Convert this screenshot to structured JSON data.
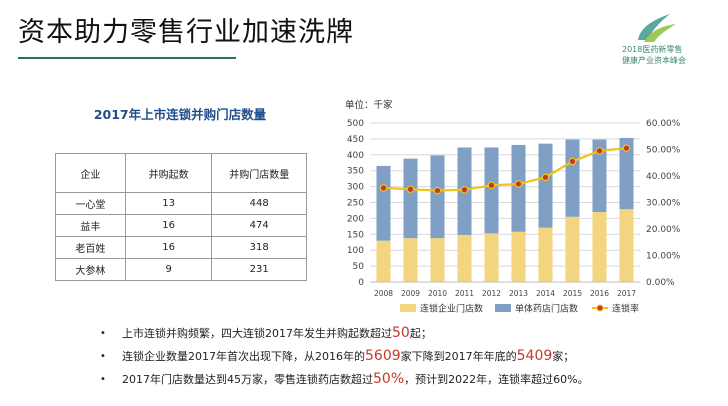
{
  "header": {
    "title": "资本助力零售行业加速洗牌",
    "logo_line1": "2018医药新零售",
    "logo_line2": "健康产业资本峰会"
  },
  "table": {
    "title": "2017年上市连锁并购门店数量",
    "headers": [
      "企业",
      "并购起数",
      "并购门店数量"
    ],
    "rows": [
      [
        "一心堂",
        "13",
        "448"
      ],
      [
        "益丰",
        "16",
        "474"
      ],
      [
        "老百姓",
        "16",
        "318"
      ],
      [
        "大参林",
        "9",
        "231"
      ]
    ]
  },
  "chart": {
    "unit_label": "单位：千家"
  },
  "chart_data": {
    "type": "bar",
    "categories": [
      "2008",
      "2009",
      "2010",
      "2011",
      "2012",
      "2013",
      "2014",
      "2015",
      "2016",
      "2017"
    ],
    "series": [
      {
        "name": "连锁企业门店数",
        "kind": "stacked-bar",
        "color": "#f2d57e",
        "values": [
          130,
          138,
          138,
          148,
          153,
          158,
          171,
          205,
          220,
          229
        ]
      },
      {
        "name": "单体药店门店数",
        "kind": "stacked-bar",
        "color": "#7fa0c4",
        "values": [
          235,
          250,
          260,
          275,
          270,
          273,
          264,
          243,
          228,
          224
        ]
      },
      {
        "name": "连锁率",
        "kind": "line",
        "axis": "right",
        "color": "#f0c21a",
        "marker_color": "#c0392b",
        "values": [
          35.5,
          35,
          34.5,
          34.8,
          36.5,
          37,
          39.5,
          45.5,
          49.5,
          50.5
        ]
      }
    ],
    "ylim": [
      0,
      500
    ],
    "yticks": [
      "0",
      "50",
      "100",
      "150",
      "200",
      "250",
      "300",
      "350",
      "400",
      "450",
      "500"
    ],
    "y2lim": [
      0,
      60
    ],
    "y2ticks": [
      "0.00%",
      "10.00%",
      "20.00%",
      "30.00%",
      "40.00%",
      "50.00%",
      "60.00%"
    ],
    "grid": true,
    "legend": "bottom"
  },
  "bullets": {
    "b1_pre": "上市连锁并购频繁，四大连锁2017年发生并购起数超过",
    "b1_hl": "50",
    "b1_post": "起；",
    "b2_pre": "连锁企业数量2017年首次出现下降，从2016年的",
    "b2_hl1": "5609",
    "b2_mid": "家下降到2017年年底的",
    "b2_hl2": "5409",
    "b2_post": "家；",
    "b3_pre": "2017年门店数量达到45万家，零售连锁药店数超过",
    "b3_hl": "50%",
    "b3_post": "，预计到2022年，连锁率超过60%。",
    "marker": "•"
  }
}
